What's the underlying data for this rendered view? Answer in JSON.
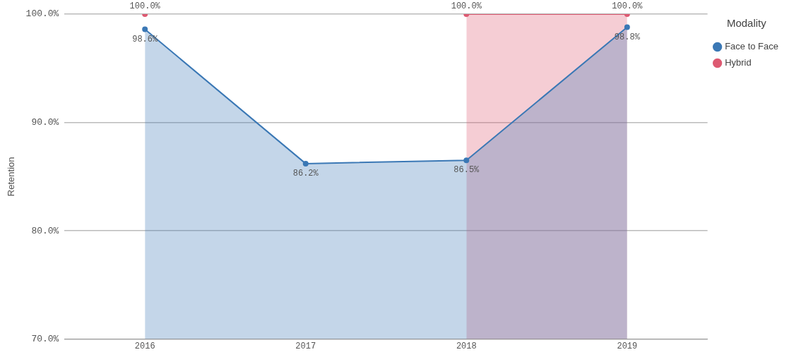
{
  "chart_data": {
    "type": "area",
    "ylabel": "Retention",
    "legend_title": "Modality",
    "legend": "top right",
    "grid": "y",
    "marker": "circle",
    "categories": [
      "2016",
      "2017",
      "2018",
      "2019"
    ],
    "ylim": [
      70,
      100
    ],
    "yticks": [
      {
        "value": 70,
        "label": "70.0%"
      },
      {
        "value": 80,
        "label": "80.0%"
      },
      {
        "value": 90,
        "label": "90.0%"
      },
      {
        "value": 100,
        "label": "100.0%"
      }
    ],
    "series": [
      {
        "name": "Face to Face",
        "color": "#3b78b5",
        "values": [
          98.6,
          86.2,
          86.5,
          98.8
        ],
        "value_labels": [
          "98.6%",
          "86.2%",
          "86.5%",
          "98.8%"
        ]
      },
      {
        "name": "Hybrid",
        "color": "#dd5a72",
        "values": [
          null,
          null,
          100,
          100
        ],
        "value_labels": [
          null,
          null,
          "100.0%",
          "100.0%"
        ]
      },
      {
        "type": "scatter",
        "color": "#dd5a72",
        "values": [
          100,
          null,
          null,
          null
        ],
        "value_labels": [
          "100.0%",
          null,
          null,
          null
        ]
      }
    ]
  }
}
